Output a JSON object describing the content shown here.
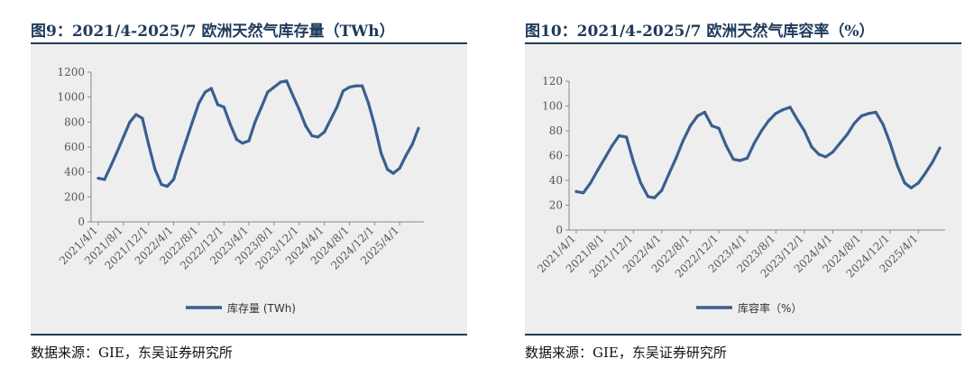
{
  "charts": [
    {
      "title": "图9：2021/4-2025/7 欧洲天然气库存量（TWh）",
      "source": "数据来源：GIE，东吴证券研究所",
      "chart_data": {
        "type": "line",
        "title": "2021/4-2025/7 欧洲天然气库存量（TWh）",
        "xlabel": "",
        "ylabel": "",
        "ylim": [
          0,
          1200
        ],
        "yticks": [
          0,
          200,
          400,
          600,
          800,
          1000,
          1200
        ],
        "xticks": [
          "2021/4/1",
          "2021/8/1",
          "2021/12/1",
          "2022/4/1",
          "2022/8/1",
          "2022/12/1",
          "2023/4/1",
          "2023/8/1",
          "2023/12/1",
          "2024/4/1",
          "2024/8/1",
          "2024/12/1",
          "2025/4/1"
        ],
        "grid": false,
        "legend_position": "bottom",
        "series": [
          {
            "name": "库存量 (TWh)",
            "color": "#3a5f8f",
            "x": [
              "2021/4/1",
              "2021/5/1",
              "2021/6/1",
              "2021/7/1",
              "2021/8/1",
              "2021/9/1",
              "2021/10/1",
              "2021/11/1",
              "2021/12/1",
              "2022/1/1",
              "2022/2/1",
              "2022/3/1",
              "2022/4/1",
              "2022/5/1",
              "2022/6/1",
              "2022/7/1",
              "2022/8/1",
              "2022/9/1",
              "2022/10/1",
              "2022/11/1",
              "2022/12/1",
              "2023/1/1",
              "2023/2/1",
              "2023/3/1",
              "2023/4/1",
              "2023/5/1",
              "2023/6/1",
              "2023/7/1",
              "2023/8/1",
              "2023/9/1",
              "2023/10/1",
              "2023/11/1",
              "2023/12/1",
              "2024/1/1",
              "2024/2/1",
              "2024/3/1",
              "2024/4/1",
              "2024/5/1",
              "2024/6/1",
              "2024/7/1",
              "2024/8/1",
              "2024/9/1",
              "2024/10/1",
              "2024/11/1",
              "2024/12/1",
              "2025/1/1",
              "2025/2/1",
              "2025/3/1",
              "2025/4/1",
              "2025/5/1",
              "2025/6/1",
              "2025/7/1"
            ],
            "values": [
              350,
              340,
              450,
              560,
              680,
              800,
              860,
              830,
              620,
              420,
              300,
              285,
              340,
              500,
              650,
              800,
              950,
              1040,
              1070,
              940,
              920,
              780,
              660,
              630,
              650,
              800,
              920,
              1040,
              1080,
              1120,
              1130,
              1010,
              900,
              770,
              690,
              680,
              720,
              820,
              920,
              1050,
              1080,
              1090,
              1090,
              950,
              770,
              550,
              420,
              390,
              430,
              530,
              620,
              750
            ]
          }
        ]
      }
    },
    {
      "title": "图10：2021/4-2025/7 欧洲天然气库容率（%）",
      "source": "数据来源：GIE，东吴证券研究所",
      "chart_data": {
        "type": "line",
        "title": "2021/4-2025/7 欧洲天然气库容率（%）",
        "xlabel": "",
        "ylabel": "",
        "ylim": [
          0,
          120
        ],
        "yticks": [
          0,
          20,
          40,
          60,
          80,
          100,
          120
        ],
        "xticks": [
          "2021/4/1",
          "2021/8/1",
          "2021/12/1",
          "2022/4/1",
          "2022/8/1",
          "2022/12/1",
          "2023/4/1",
          "2023/8/1",
          "2023/12/1",
          "2024/4/1",
          "2024/8/1",
          "2024/12/1",
          "2025/4/1"
        ],
        "grid": false,
        "legend_position": "bottom",
        "series": [
          {
            "name": "库容率（%）",
            "color": "#3a5f8f",
            "x": [
              "2021/4/1",
              "2021/5/1",
              "2021/6/1",
              "2021/7/1",
              "2021/8/1",
              "2021/9/1",
              "2021/10/1",
              "2021/11/1",
              "2021/12/1",
              "2022/1/1",
              "2022/2/1",
              "2022/3/1",
              "2022/4/1",
              "2022/5/1",
              "2022/6/1",
              "2022/7/1",
              "2022/8/1",
              "2022/9/1",
              "2022/10/1",
              "2022/11/1",
              "2022/12/1",
              "2023/1/1",
              "2023/2/1",
              "2023/3/1",
              "2023/4/1",
              "2023/5/1",
              "2023/6/1",
              "2023/7/1",
              "2023/8/1",
              "2023/9/1",
              "2023/10/1",
              "2023/11/1",
              "2023/12/1",
              "2024/1/1",
              "2024/2/1",
              "2024/3/1",
              "2024/4/1",
              "2024/5/1",
              "2024/6/1",
              "2024/7/1",
              "2024/8/1",
              "2024/9/1",
              "2024/10/1",
              "2024/11/1",
              "2024/12/1",
              "2025/1/1",
              "2025/2/1",
              "2025/3/1",
              "2025/4/1",
              "2025/5/1",
              "2025/6/1",
              "2025/7/1"
            ],
            "values": [
              31,
              30,
              38,
              48,
              58,
              68,
              76,
              75,
              55,
              38,
              27,
              26,
              32,
              45,
              58,
              72,
              84,
              92,
              95,
              84,
              82,
              68,
              57,
              56,
              58,
              70,
              80,
              88,
              94,
              97,
              99,
              89,
              80,
              67,
              61,
              59,
              63,
              70,
              77,
              86,
              92,
              94,
              95,
              85,
              70,
              52,
              38,
              34,
              38,
              46,
              55,
              66
            ]
          }
        ]
      }
    }
  ]
}
